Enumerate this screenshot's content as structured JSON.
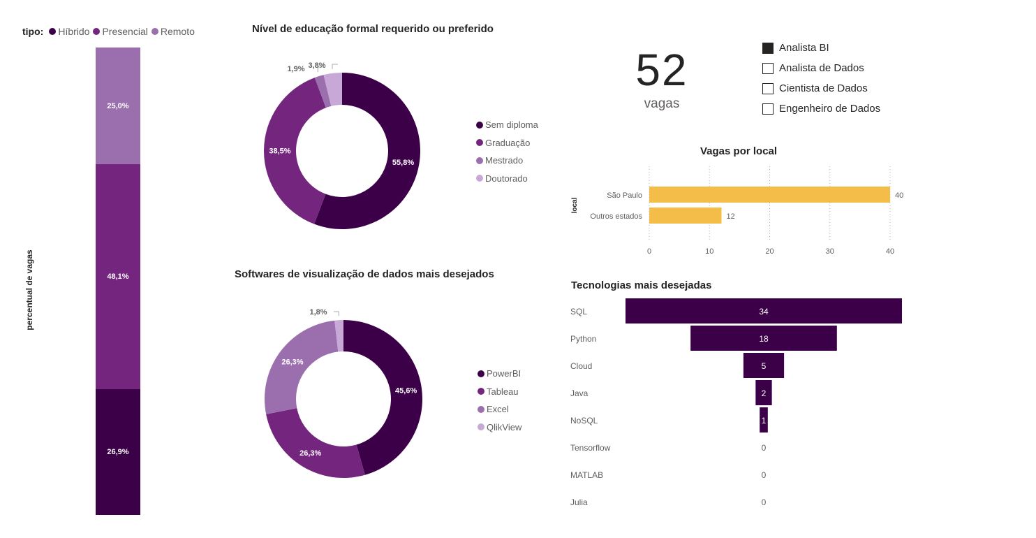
{
  "tipo_legend": {
    "label": "tipo:",
    "items": [
      {
        "name": "Híbrido",
        "color": "#3c0048"
      },
      {
        "name": "Presencial",
        "color": "#74267f"
      },
      {
        "name": "Remoto",
        "color": "#9b6fae"
      }
    ]
  },
  "stacked_axis_label": "percentual de vagas",
  "stacked_chart": {
    "type": "bar",
    "segments_top_to_bottom": [
      {
        "series": "Remoto",
        "value": 25.0,
        "label": "25,0%",
        "color": "#9b6fae"
      },
      {
        "series": "Presencial",
        "value": 48.1,
        "label": "48,1%",
        "color": "#74267f"
      },
      {
        "series": "Híbrido",
        "value": 26.9,
        "label": "26,9%",
        "color": "#3c0048"
      }
    ]
  },
  "education_chart": {
    "title": "Nível de educação formal requerido ou preferido",
    "legend": [
      "Sem diploma",
      "Graduação",
      "Mestrado",
      "Doutorado"
    ]
  },
  "software_chart": {
    "title": "Softwares de visualização de dados mais desejados",
    "legend": [
      "PowerBI",
      "Tableau",
      "Excel",
      "QlikView"
    ]
  },
  "kpi": {
    "value": "52",
    "label": "vagas"
  },
  "role_slicer": {
    "options": [
      {
        "label": "Analista BI",
        "selected": true
      },
      {
        "label": "Analista de Dados",
        "selected": false
      },
      {
        "label": "Cientista de Dados",
        "selected": false
      },
      {
        "label": "Engenheiro de Dados",
        "selected": false
      }
    ]
  },
  "local_chart": {
    "title": "Vagas por local",
    "ylabel": "local"
  },
  "tech_chart": {
    "title": "Tecnologias mais desejadas"
  },
  "chart_data": [
    {
      "type": "bar",
      "title": "",
      "ylabel": "percentual de vagas",
      "categories": [
        ""
      ],
      "series": [
        {
          "name": "Híbrido",
          "values": [
            26.9
          ],
          "labels": [
            "26,9%"
          ],
          "color": "#3c0048"
        },
        {
          "name": "Presencial",
          "values": [
            48.1
          ],
          "labels": [
            "48,1%"
          ],
          "color": "#74267f"
        },
        {
          "name": "Remoto",
          "values": [
            25.0
          ],
          "labels": [
            "25,0%"
          ],
          "color": "#9b6fae"
        }
      ]
    },
    {
      "type": "pie",
      "title": "Nível de educação formal requerido ou preferido",
      "categories": [
        "Sem diploma",
        "Graduação",
        "Mestrado",
        "Doutorado"
      ],
      "values": [
        55.8,
        38.5,
        1.9,
        3.8
      ],
      "labels": [
        "55,8%",
        "38,5%",
        "1,9%",
        "3,8%"
      ],
      "colors": [
        "#3c0048",
        "#74267f",
        "#9b6fae",
        "#c8a8d6"
      ]
    },
    {
      "type": "pie",
      "title": "Softwares de visualização de dados mais desejados",
      "categories": [
        "PowerBI",
        "Tableau",
        "Excel",
        "QlikView"
      ],
      "values": [
        45.6,
        26.3,
        26.3,
        1.8
      ],
      "labels": [
        "45,6%",
        "26,3%",
        "26,3%",
        "1,8%"
      ],
      "colors": [
        "#3c0048",
        "#74267f",
        "#9b6fae",
        "#c8a8d6"
      ]
    },
    {
      "type": "bar",
      "title": "Vagas por local",
      "ylabel": "local",
      "categories": [
        "São Paulo",
        "Outros estados"
      ],
      "values": [
        40,
        12
      ],
      "xlim": [
        0,
        40
      ],
      "xticks": [
        0,
        10,
        20,
        30,
        40
      ],
      "color": "#f4bd4a",
      "grid": true
    },
    {
      "type": "bar",
      "title": "Tecnologias mais desejadas",
      "categories": [
        "SQL",
        "Python",
        "Cloud",
        "Java",
        "NoSQL",
        "Tensorflow",
        "MATLAB",
        "Julia"
      ],
      "values": [
        34,
        18,
        5,
        2,
        1,
        0,
        0,
        0
      ],
      "color": "#3c0048"
    }
  ]
}
